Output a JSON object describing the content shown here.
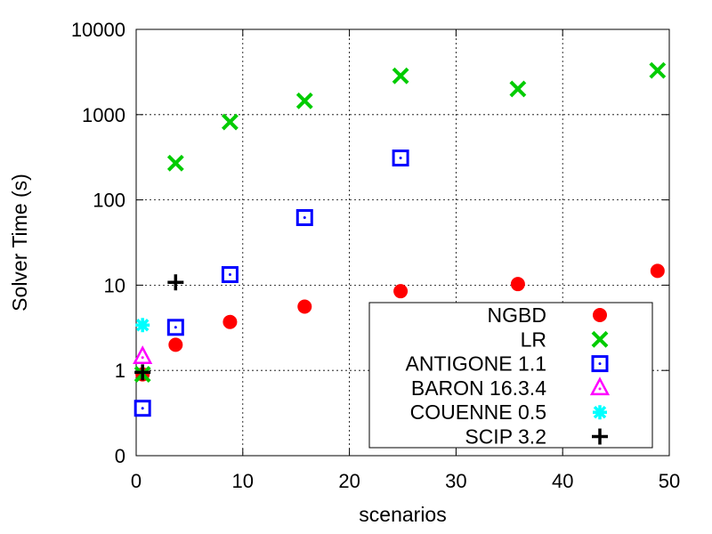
{
  "chart_data": {
    "type": "scatter",
    "xlabel": "scenarios",
    "ylabel": "Solver Time (s)",
    "xlim": [
      0,
      50
    ],
    "ylim": [
      0.1,
      10000
    ],
    "y_scale": "log",
    "grid": true,
    "legend_position": "bottom-right",
    "x_ticks": [
      {
        "value": 0,
        "label": "0"
      },
      {
        "value": 10,
        "label": "10"
      },
      {
        "value": 20,
        "label": "20"
      },
      {
        "value": 30,
        "label": "30"
      },
      {
        "value": 40,
        "label": "40"
      },
      {
        "value": 50,
        "label": "50"
      }
    ],
    "y_ticks": [
      {
        "value": 0.1,
        "label": "0"
      },
      {
        "value": 1,
        "label": "1"
      },
      {
        "value": 10,
        "label": "10"
      },
      {
        "value": 100,
        "label": "100"
      },
      {
        "value": 1000,
        "label": "1000"
      },
      {
        "value": 10000,
        "label": "10000"
      }
    ],
    "series": [
      {
        "name": "NGBD",
        "marker": "filled-circle",
        "color": "#ff0000",
        "points": [
          [
            0.6,
            0.9
          ],
          [
            3.7,
            2.0
          ],
          [
            8.8,
            3.7
          ],
          [
            15.8,
            5.6
          ],
          [
            24.8,
            8.5
          ],
          [
            35.8,
            10.3
          ],
          [
            48.9,
            14.7
          ]
        ]
      },
      {
        "name": "LR",
        "marker": "x",
        "color": "#00cc00",
        "points": [
          [
            0.6,
            0.9
          ],
          [
            3.7,
            270
          ],
          [
            8.8,
            820
          ],
          [
            15.8,
            1450
          ],
          [
            24.8,
            2850
          ],
          [
            35.8,
            2000
          ],
          [
            48.9,
            3300
          ]
        ]
      },
      {
        "name": "ANTIGONE 1.1",
        "marker": "dotted-square",
        "color": "#0000ff",
        "points": [
          [
            0.6,
            0.36
          ],
          [
            3.7,
            3.2
          ],
          [
            8.8,
            13.3
          ],
          [
            15.8,
            62
          ],
          [
            24.8,
            310
          ]
        ]
      },
      {
        "name": "BARON 16.3.4",
        "marker": "dotted-triangle",
        "color": "#ff00ff",
        "points": [
          [
            0.6,
            1.45
          ]
        ]
      },
      {
        "name": "COUENNE 0.5",
        "marker": "asterisk",
        "color": "#00ffff",
        "points": [
          [
            0.6,
            3.4
          ]
        ]
      },
      {
        "name": "SCIP 3.2",
        "marker": "plus",
        "color": "#000000",
        "points": [
          [
            0.6,
            0.95
          ],
          [
            3.7,
            10.8
          ]
        ]
      }
    ]
  }
}
